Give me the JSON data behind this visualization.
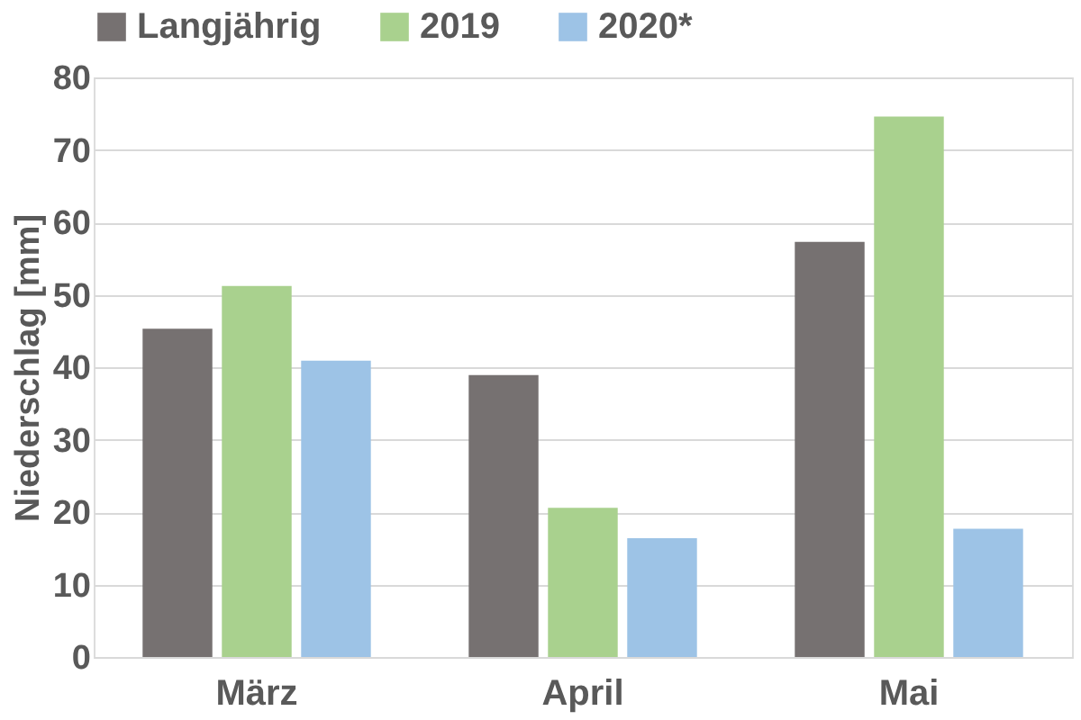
{
  "chart_data": {
    "type": "bar",
    "ylabel": "Niederschlag [mm]",
    "categories": [
      "März",
      "April",
      "Mai"
    ],
    "series": [
      {
        "name": "Langjährig",
        "color": "#767171",
        "values": [
          45.3,
          38.9,
          57.3
        ]
      },
      {
        "name": "2019",
        "color": "#a9d18e",
        "values": [
          51.2,
          20.6,
          74.6
        ]
      },
      {
        "name": "2020*",
        "color": "#9dc3e6",
        "values": [
          40.9,
          16.4,
          17.7
        ]
      }
    ],
    "ylim": [
      0,
      80
    ],
    "yticks": [
      0,
      10,
      20,
      30,
      40,
      50,
      60,
      70,
      80
    ],
    "grid": "y",
    "legend": "top"
  }
}
